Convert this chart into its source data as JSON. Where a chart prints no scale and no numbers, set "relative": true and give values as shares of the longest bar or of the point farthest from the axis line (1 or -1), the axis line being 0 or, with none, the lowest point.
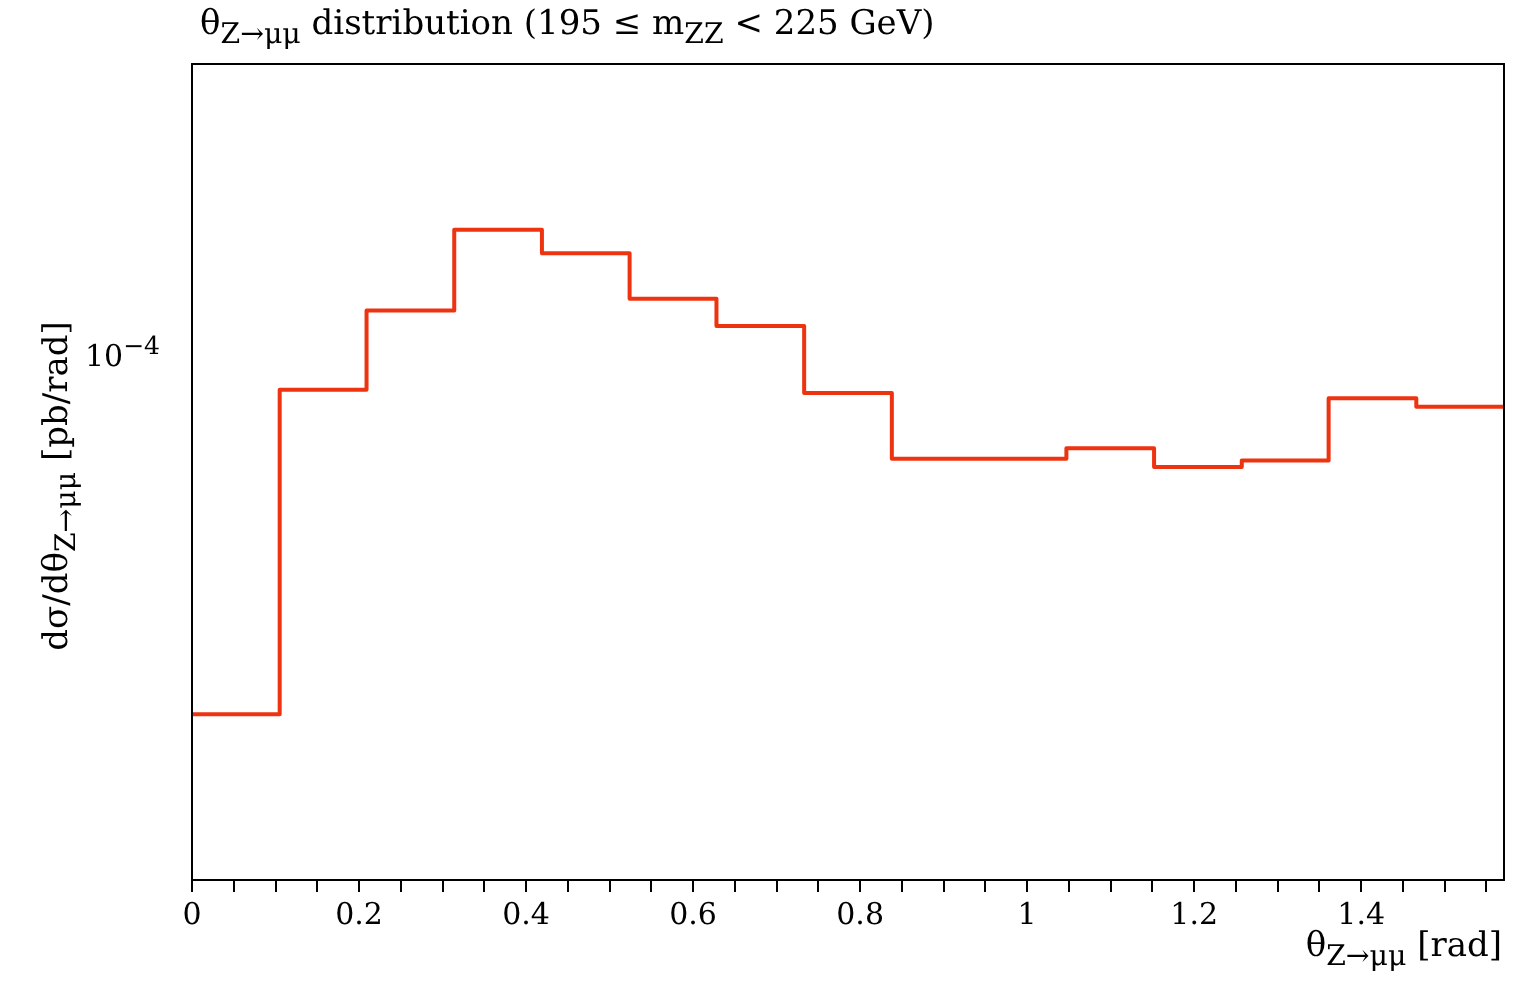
{
  "chart_data": {
    "type": "step",
    "title": "θ$_{Z→μμ}$ distribution (195 ≤ m$_{ZZ}$ < 225 GeV)",
    "xlabel": "θ$_{Z→μμ}$ [rad]",
    "ylabel": "dσ/dθ$_{Z→μμ}$ [pb/rad]",
    "annotations": [
      "10$^{−4}$"
    ],
    "relative": true,
    "x": [
      0,
      0.105,
      0.209,
      0.314,
      0.419,
      0.524,
      0.628,
      0.733,
      0.838,
      0.942,
      1.047,
      1.152,
      1.257,
      1.361,
      1.466,
      1.571
    ],
    "values": [
      0.255,
      0.754,
      0.876,
      1,
      0.964,
      0.894,
      0.852,
      0.749,
      0.648,
      0.648,
      0.664,
      0.635,
      0.645,
      0.741,
      0.728,
      0.728
    ],
    "color": "#ee3311",
    "xlim": [
      0,
      1.571
    ],
    "xticks": [
      0,
      {
        "value": 0.05,
        "label": null
      },
      {
        "value": 0.1,
        "label": null
      },
      {
        "value": 0.15,
        "label": null
      },
      0.2,
      {
        "value": 0.25,
        "label": null
      },
      {
        "value": 0.3,
        "label": null
      },
      {
        "value": 0.35,
        "label": null
      },
      0.4,
      {
        "value": 0.45,
        "label": null
      },
      {
        "value": 0.5,
        "label": null
      },
      {
        "value": 0.55,
        "label": null
      },
      0.6,
      {
        "value": 0.65,
        "label": null
      },
      {
        "value": 0.7,
        "label": null
      },
      {
        "value": 0.75,
        "label": null
      },
      0.8,
      {
        "value": 0.85,
        "label": null
      },
      {
        "value": 0.9,
        "label": null
      },
      {
        "value": 0.95,
        "label": null
      },
      1,
      {
        "value": 1.05,
        "label": null
      },
      {
        "value": 1.1,
        "label": null
      },
      {
        "value": 1.15,
        "label": null
      },
      1.2,
      {
        "value": 1.25,
        "label": null
      },
      {
        "value": 1.3,
        "label": null
      },
      {
        "value": 1.35,
        "label": null
      },
      1.4,
      {
        "value": 1.45,
        "label": null
      },
      {
        "value": 1.5,
        "label": null
      },
      {
        "value": 1.55,
        "label": null
      }
    ]
  }
}
